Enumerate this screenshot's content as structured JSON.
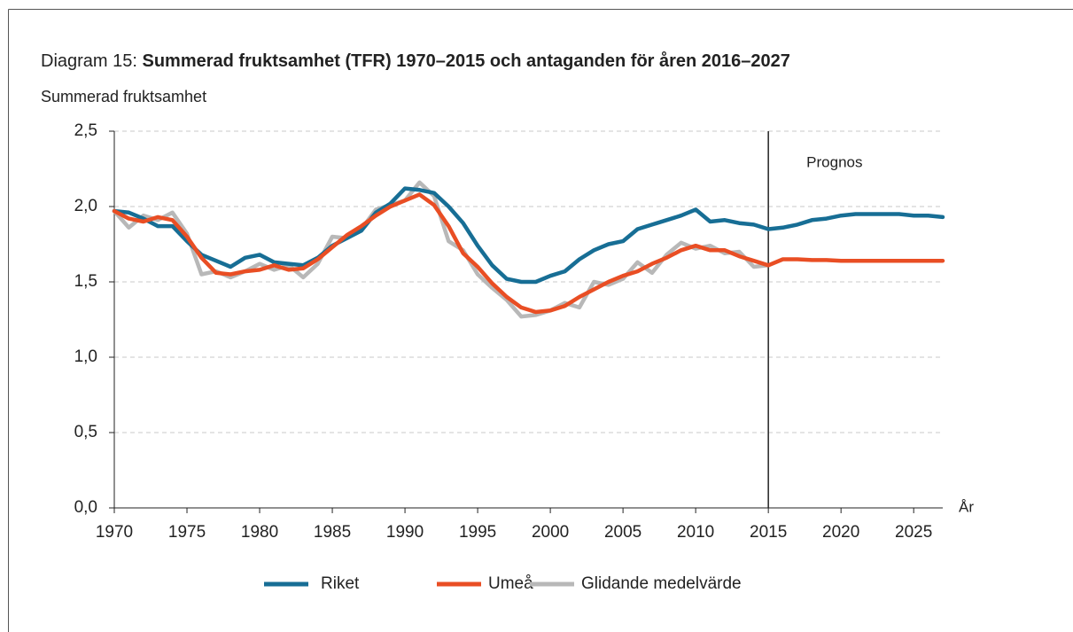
{
  "chart_data": {
    "type": "line",
    "title_prefix": "Diagram 15:",
    "title": "Summerad fruktsamhet (TFR) 1970–2015 och antaganden för åren 2016–2027",
    "y_label": "Summerad fruktsamhet",
    "x_label": "År",
    "annotation": "Prognos",
    "forecast_start": 2015,
    "x": [
      1970,
      1971,
      1972,
      1973,
      1974,
      1975,
      1976,
      1977,
      1978,
      1979,
      1980,
      1981,
      1982,
      1983,
      1984,
      1985,
      1986,
      1987,
      1988,
      1989,
      1990,
      1991,
      1992,
      1993,
      1994,
      1995,
      1996,
      1997,
      1998,
      1999,
      2000,
      2001,
      2002,
      2003,
      2004,
      2005,
      2006,
      2007,
      2008,
      2009,
      2010,
      2011,
      2012,
      2013,
      2014,
      2015,
      2016,
      2017,
      2018,
      2019,
      2020,
      2021,
      2022,
      2023,
      2024,
      2025,
      2026,
      2027
    ],
    "series": [
      {
        "name": "Riket",
        "color": "#176e95",
        "values": [
          1.97,
          1.96,
          1.92,
          1.87,
          1.87,
          1.77,
          1.68,
          1.64,
          1.6,
          1.66,
          1.68,
          1.63,
          1.62,
          1.61,
          1.66,
          1.74,
          1.79,
          1.84,
          1.96,
          2.02,
          2.12,
          2.11,
          2.09,
          2.0,
          1.89,
          1.74,
          1.61,
          1.52,
          1.5,
          1.5,
          1.54,
          1.57,
          1.65,
          1.71,
          1.75,
          1.77,
          1.85,
          1.88,
          1.91,
          1.94,
          1.98,
          1.9,
          1.91,
          1.89,
          1.88,
          1.85,
          1.86,
          1.88,
          1.91,
          1.92,
          1.94,
          1.95,
          1.95,
          1.95,
          1.95,
          1.94,
          1.94,
          1.93
        ]
      },
      {
        "name": "Umeå",
        "color": "#e94e24",
        "values": [
          1.97,
          1.92,
          1.9,
          1.93,
          1.91,
          1.8,
          1.66,
          1.56,
          1.55,
          1.57,
          1.58,
          1.61,
          1.58,
          1.59,
          1.65,
          1.73,
          1.81,
          1.87,
          1.94,
          2.0,
          2.04,
          2.08,
          2.01,
          1.87,
          1.69,
          1.6,
          1.49,
          1.4,
          1.33,
          1.3,
          1.31,
          1.34,
          1.4,
          1.45,
          1.5,
          1.54,
          1.57,
          1.62,
          1.66,
          1.71,
          1.74,
          1.71,
          1.71,
          1.67,
          1.64,
          1.61,
          1.65,
          1.65,
          1.645,
          1.645,
          1.64,
          1.64,
          1.64,
          1.64,
          1.64,
          1.64,
          1.64,
          1.64
        ]
      },
      {
        "name": "Glidande medelvärde",
        "color": "#b8b8b8",
        "values": [
          1.97,
          1.86,
          1.94,
          1.91,
          1.96,
          1.82,
          1.55,
          1.57,
          1.53,
          1.57,
          1.62,
          1.58,
          1.61,
          1.53,
          1.62,
          1.8,
          1.79,
          1.85,
          1.98,
          2.01,
          2.04,
          2.16,
          2.07,
          1.77,
          1.71,
          1.55,
          1.46,
          1.38,
          1.27,
          1.28,
          1.31,
          1.36,
          1.33,
          1.5,
          1.48,
          1.52,
          1.63,
          1.56,
          1.68,
          1.76,
          1.72,
          1.74,
          1.69,
          1.7,
          1.6,
          1.61,
          null,
          null,
          null,
          null,
          null,
          null,
          null,
          null,
          null,
          null,
          null,
          null
        ]
      }
    ],
    "xlim": [
      1970,
      2027
    ],
    "xticks": [
      1970,
      1975,
      1980,
      1985,
      1990,
      1995,
      2000,
      2005,
      2010,
      2015,
      2020,
      2025
    ],
    "ylim": [
      0,
      2.5
    ],
    "yticks": [
      {
        "value": 0,
        "label": "0,0"
      },
      {
        "value": 0.5,
        "label": "0,5"
      },
      {
        "value": 1,
        "label": "1,0"
      },
      {
        "value": 1.5,
        "label": "1,5"
      },
      {
        "value": 2,
        "label": "2,0"
      },
      {
        "value": 2.5,
        "label": "2,5"
      }
    ],
    "grid": true,
    "legend": "bottom"
  }
}
